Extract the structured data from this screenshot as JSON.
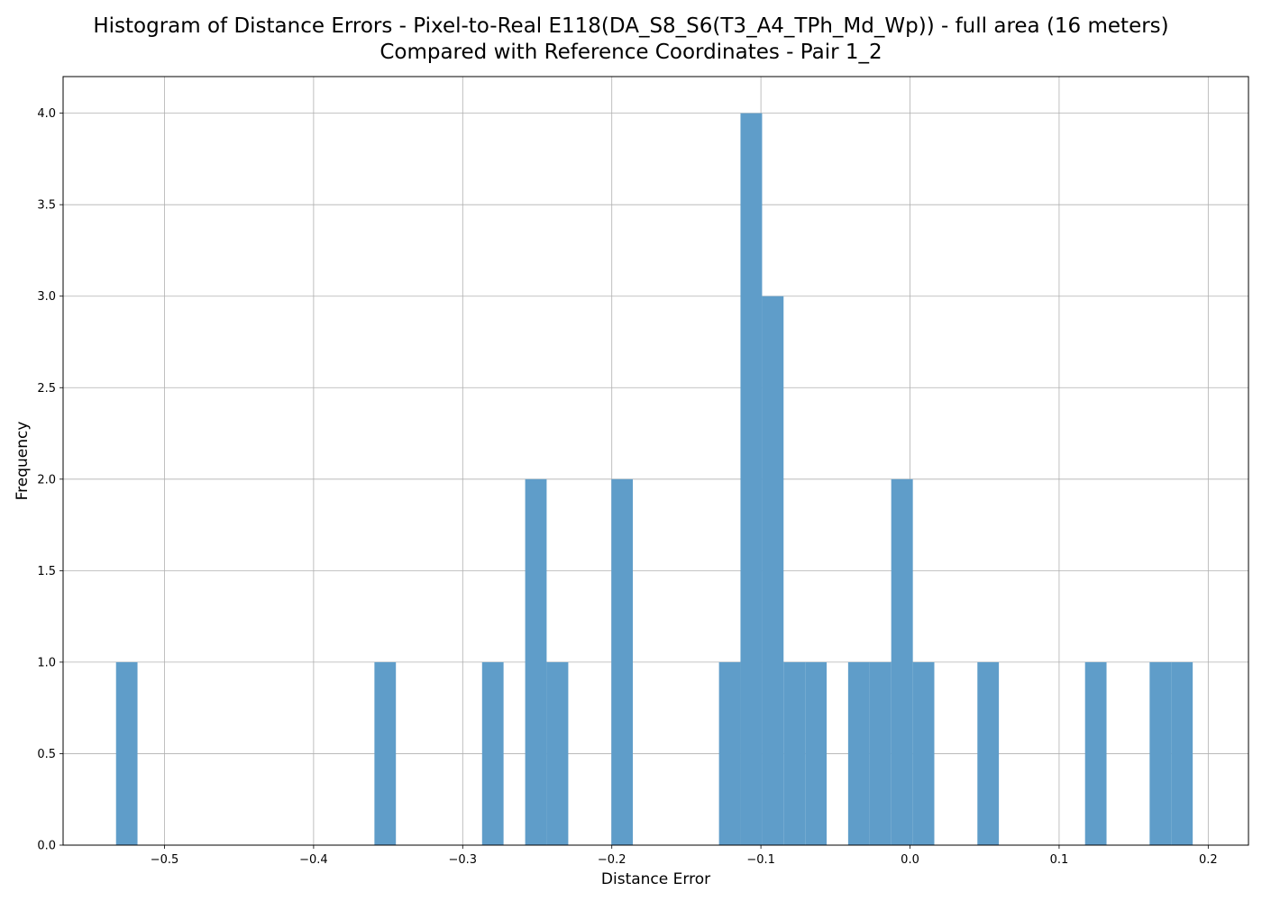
{
  "chart_data": {
    "type": "bar",
    "subtype": "histogram",
    "title_lines": [
      "Histogram of Distance Errors - Pixel-to-Real E118(DA_S8_S6(T3_A4_TPh_Md_Wp)) - full area (16 meters)",
      "Compared with Reference Coordinates - Pair 1_2"
    ],
    "xlabel": "Distance Error",
    "ylabel": "Frequency",
    "xlim": [
      -0.568,
      0.227
    ],
    "ylim": [
      0,
      4.2
    ],
    "xticks": [
      -0.5,
      -0.4,
      -0.3,
      -0.2,
      -0.1,
      0.0,
      0.1,
      0.2
    ],
    "xtick_labels": [
      "−0.5",
      "−0.4",
      "−0.3",
      "−0.2",
      "−0.1",
      "0.0",
      "0.1",
      "0.2"
    ],
    "yticks": [
      0,
      0.5,
      1,
      1.5,
      2,
      2.5,
      3,
      3.5,
      4
    ],
    "ytick_labels": [
      "0.0",
      "0.5",
      "1.0",
      "1.5",
      "2.0",
      "2.5",
      "3.0",
      "3.5",
      "4.0"
    ],
    "grid": true,
    "bar_color": "#5f9dc9",
    "bins": [
      {
        "x0": -0.5325,
        "x1": -0.5181,
        "count": 1
      },
      {
        "x0": -0.3592,
        "x1": -0.3448,
        "count": 1
      },
      {
        "x0": -0.287,
        "x1": -0.2726,
        "count": 1
      },
      {
        "x0": -0.2581,
        "x1": -0.2437,
        "count": 2
      },
      {
        "x0": -0.2437,
        "x1": -0.2292,
        "count": 1
      },
      {
        "x0": -0.2003,
        "x1": -0.1859,
        "count": 2
      },
      {
        "x0": -0.1281,
        "x1": -0.1137,
        "count": 1
      },
      {
        "x0": -0.1137,
        "x1": -0.0992,
        "count": 4
      },
      {
        "x0": -0.0992,
        "x1": -0.0848,
        "count": 3
      },
      {
        "x0": -0.0848,
        "x1": -0.0703,
        "count": 1
      },
      {
        "x0": -0.0703,
        "x1": -0.0559,
        "count": 1
      },
      {
        "x0": -0.0415,
        "x1": -0.027,
        "count": 1
      },
      {
        "x0": -0.027,
        "x1": -0.0126,
        "count": 1
      },
      {
        "x0": -0.0126,
        "x1": 0.0019,
        "count": 2
      },
      {
        "x0": 0.0019,
        "x1": 0.0163,
        "count": 1
      },
      {
        "x0": 0.0452,
        "x1": 0.0596,
        "count": 1
      },
      {
        "x0": 0.1174,
        "x1": 0.1318,
        "count": 1
      },
      {
        "x0": 0.1607,
        "x1": 0.1752,
        "count": 1
      },
      {
        "x0": 0.1752,
        "x1": 0.1896,
        "count": 1
      }
    ]
  }
}
